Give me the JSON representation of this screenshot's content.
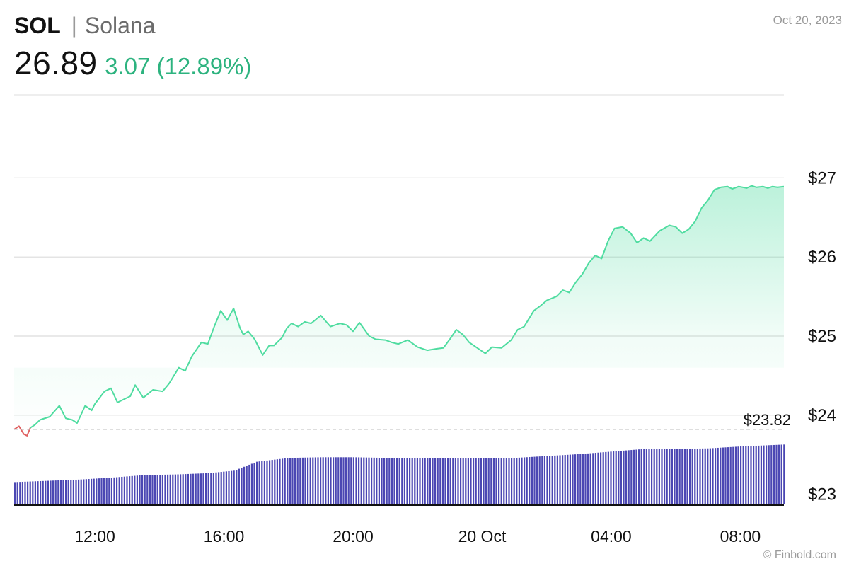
{
  "header": {
    "ticker": "SOL",
    "separator": "|",
    "name": "Solana",
    "price": "26.89",
    "change": "3.07 (12.89%)",
    "date": "Oct 20, 2023"
  },
  "footer": {
    "credit": "© Finbold.com"
  },
  "colors": {
    "line_up": "#4fdca0",
    "line_down": "#e06262",
    "area_top": "#4fdca0",
    "volume": "#4b47b3",
    "grid": "#dcdcdc",
    "change": "#2db37f"
  },
  "chart_data": {
    "type": "line",
    "title": "",
    "xlabel": "",
    "ylabel": "",
    "x_range": [
      9.5,
      33.35
    ],
    "ylim": [
      22.88,
      28.05
    ],
    "y_ticks": [
      23,
      24,
      25,
      26,
      27
    ],
    "y_tick_labels": [
      "$23",
      "$24",
      "$25",
      "$26",
      "$27"
    ],
    "x_ticks": [
      12,
      16,
      20,
      24,
      28,
      32
    ],
    "x_tick_labels": [
      "12:00",
      "16:00",
      "20:00",
      "20 Oct",
      "04:00",
      "08:00"
    ],
    "reference_line": {
      "value": 23.82,
      "label": "$23.82"
    },
    "series": [
      {
        "x": [
          9.5,
          9.65,
          9.8,
          9.9,
          10.0,
          10.15,
          10.3,
          10.6,
          10.9,
          11.1,
          11.3,
          11.45,
          11.7,
          11.9,
          12.0,
          12.3,
          12.5,
          12.7,
          12.9,
          13.1,
          13.25,
          13.5,
          13.8,
          14.1,
          14.3,
          14.6,
          14.8,
          15.0,
          15.3,
          15.5,
          15.7,
          15.9,
          16.1,
          16.3,
          16.5,
          16.6,
          16.75,
          16.95,
          17.2,
          17.4,
          17.55,
          17.8,
          17.95,
          18.1,
          18.3,
          18.5,
          18.7,
          19.0,
          19.3,
          19.6,
          19.8,
          20.0,
          20.2,
          20.5,
          20.7,
          21.0,
          21.2,
          21.4,
          21.7,
          22.0,
          22.3,
          22.6,
          22.8,
          23.0,
          23.2,
          23.4,
          23.6,
          23.85,
          24.1,
          24.3,
          24.6,
          24.9,
          25.1,
          25.3,
          25.6,
          25.8,
          26.0,
          26.3,
          26.5,
          26.7,
          26.9,
          27.1,
          27.3,
          27.5,
          27.7,
          27.9,
          28.1,
          28.35,
          28.6,
          28.8,
          29.0,
          29.2,
          29.5,
          29.8,
          30.0,
          30.2,
          30.4,
          30.6,
          30.8,
          31.0,
          31.2,
          31.4,
          31.6,
          31.75,
          31.95,
          32.2,
          32.35,
          32.5,
          32.7,
          32.85,
          33.0,
          33.15,
          33.35
        ],
        "y": [
          23.82,
          23.86,
          23.76,
          23.74,
          23.84,
          23.88,
          23.94,
          23.98,
          24.12,
          23.96,
          23.94,
          23.9,
          24.12,
          24.06,
          24.14,
          24.3,
          24.34,
          24.16,
          24.2,
          24.24,
          24.38,
          24.22,
          24.32,
          24.3,
          24.4,
          24.6,
          24.56,
          24.74,
          24.92,
          24.9,
          25.12,
          25.32,
          25.2,
          25.35,
          25.1,
          25.02,
          25.06,
          24.96,
          24.76,
          24.88,
          24.88,
          24.98,
          25.1,
          25.16,
          25.12,
          25.18,
          25.16,
          25.26,
          25.12,
          25.16,
          25.14,
          25.06,
          25.17,
          25.0,
          24.96,
          24.95,
          24.92,
          24.9,
          24.95,
          24.86,
          24.82,
          24.84,
          24.85,
          24.96,
          25.08,
          25.02,
          24.92,
          24.85,
          24.78,
          24.86,
          24.85,
          24.95,
          25.08,
          25.12,
          25.32,
          25.38,
          25.45,
          25.5,
          25.58,
          25.55,
          25.68,
          25.78,
          25.92,
          26.02,
          25.98,
          26.2,
          26.36,
          26.38,
          26.3,
          26.18,
          26.24,
          26.2,
          26.33,
          26.4,
          26.38,
          26.3,
          26.35,
          26.45,
          26.62,
          26.72,
          26.85,
          26.88,
          26.89,
          26.86,
          26.89,
          26.87,
          26.9,
          26.88,
          26.89,
          26.87,
          26.89,
          26.88,
          26.89
        ]
      }
    ],
    "volume": {
      "min": 0,
      "max": 1,
      "x": [
        9.5,
        10.5,
        11.5,
        12.5,
        13.5,
        14.5,
        15.5,
        16.3,
        16.6,
        17.0,
        18.0,
        19.0,
        20.0,
        21.0,
        22.0,
        23.0,
        24.0,
        25.0,
        26.0,
        27.0,
        28.0,
        29.0,
        30.0,
        31.0,
        32.0,
        33.35
      ],
      "values": [
        0.34,
        0.36,
        0.38,
        0.41,
        0.45,
        0.46,
        0.48,
        0.52,
        0.58,
        0.66,
        0.72,
        0.73,
        0.73,
        0.72,
        0.72,
        0.72,
        0.72,
        0.72,
        0.75,
        0.78,
        0.82,
        0.86,
        0.86,
        0.87,
        0.9,
        0.93
      ]
    }
  }
}
